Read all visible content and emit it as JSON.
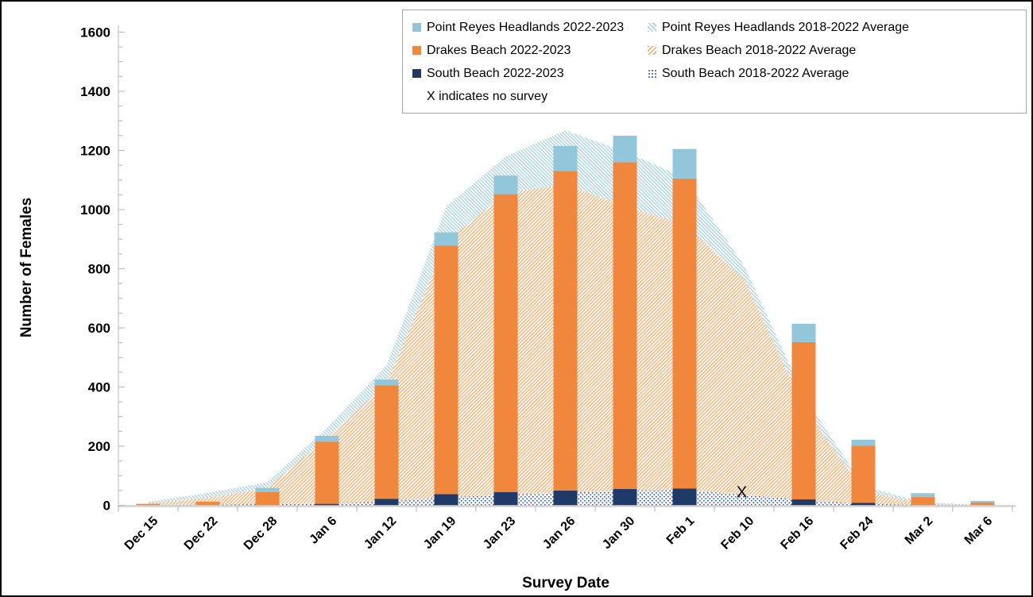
{
  "chart_data": {
    "type": "bar",
    "title": "",
    "xlabel": "Survey Date",
    "ylabel": "Number of Females",
    "ylim": [
      0,
      1600
    ],
    "ytick_step": 200,
    "yminor_step": 50,
    "grid": false,
    "legend_position": "top-right",
    "categories": [
      "Dec 15",
      "Dec 22",
      "Dec 28",
      "Jan 6",
      "Jan 12",
      "Jan 19",
      "Jan 23",
      "Jan 26",
      "Jan 30",
      "Feb 1",
      "Feb 10",
      "Feb 16",
      "Feb 24",
      "Mar 2",
      "Mar 6"
    ],
    "series": [
      {
        "name": "South Beach 2022-2023",
        "kind": "bar",
        "color_key": "sb",
        "values": [
          0,
          0,
          0,
          5,
          22,
          38,
          45,
          50,
          55,
          57,
          null,
          20,
          8,
          0,
          0
        ]
      },
      {
        "name": "Drakes Beach 2022-2023",
        "kind": "bar",
        "color_key": "db",
        "values": [
          5,
          12,
          45,
          210,
          384,
          840,
          1007,
          1080,
          1105,
          1048,
          null,
          532,
          194,
          28,
          10
        ]
      },
      {
        "name": "Point Reyes Headlands 2022-2023",
        "kind": "bar",
        "color_key": "prh",
        "values": [
          0,
          0,
          14,
          20,
          19,
          45,
          63,
          85,
          90,
          100,
          null,
          62,
          20,
          13,
          5
        ]
      }
    ],
    "area_series": [
      {
        "name": "South Beach 2018-2022 Average",
        "kind": "area",
        "pattern": "dots",
        "color_key": "sb_dots",
        "values": [
          0,
          2,
          4,
          6,
          12,
          27,
          35,
          43,
          48,
          51,
          36,
          17,
          5,
          1,
          0
        ]
      },
      {
        "name": "Drakes Beach 2018-2022 Average",
        "kind": "area",
        "pattern": "hatch-up",
        "color_key": "db_hatch",
        "values": [
          6,
          24,
          54,
          222,
          400,
          863,
          1020,
          1043,
          962,
          899,
          728,
          317,
          43,
          4,
          1
        ]
      },
      {
        "name": "Point Reyes Headlands 2018-2022 Average",
        "kind": "area",
        "pattern": "hatch-down",
        "color_key": "prh_hatch",
        "values": [
          6,
          16,
          20,
          34,
          61,
          120,
          125,
          182,
          186,
          158,
          46,
          37,
          18,
          4,
          1
        ]
      }
    ],
    "no_survey": {
      "category": "Feb 10",
      "marker": "X",
      "marker_value": 45,
      "note": "X indicates no survey"
    },
    "colors": {
      "prh": "#92C7DB",
      "db": "#F0873C",
      "sb": "#1F3A66",
      "prh_hatch": "#9FCEDF",
      "db_hatch": "#F5A763",
      "sb_dots": "#3E68AC",
      "axis": "#BFBFBF",
      "axis_line": "#D2D2D2",
      "text": "#000000",
      "legend_border": "#A6A6A6"
    },
    "legend": {
      "columns": [
        [
          {
            "label": "Point Reyes Headlands 2022-2023",
            "swatch": "solid",
            "color_key": "prh"
          },
          {
            "label": "Drakes Beach 2022-2023",
            "swatch": "solid",
            "color_key": "db"
          },
          {
            "label": "South Beach 2022-2023",
            "swatch": "solid",
            "color_key": "sb"
          },
          {
            "label": "X indicates no survey",
            "swatch": "none",
            "color_key": null
          }
        ],
        [
          {
            "label": "Point Reyes Headlands 2018-2022 Average",
            "swatch": "hatch-down",
            "color_key": "prh_hatch"
          },
          {
            "label": "Drakes Beach 2018-2022 Average",
            "swatch": "hatch-up",
            "color_key": "db_hatch"
          },
          {
            "label": "South Beach 2018-2022 Average",
            "swatch": "dots",
            "color_key": "sb_dots"
          }
        ]
      ]
    }
  }
}
